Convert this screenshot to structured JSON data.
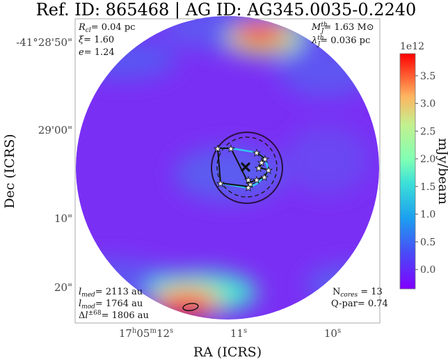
{
  "title": "Ref. ID: 865468 | AG ID: AG345.0035-0.2240",
  "chart_data": {
    "type": "heatmap",
    "title": "Ref. ID: 865468 | AG ID: AG345.0035-0.2240",
    "xlabel": "RA (ICRS)",
    "ylabel": "Dec (ICRS)",
    "x_ticks": [
      "17h05m12s",
      "11s",
      "10s"
    ],
    "y_ticks": [
      "-41°28'50\"",
      "29'00\"",
      "10\"",
      "20\""
    ],
    "annotations_top_left": [
      "R_cl= 0.04 pc",
      "ξ= 1.60",
      "e= 1.24"
    ],
    "annotations_top_right": [
      "M_J^th= 1.63 M⊙",
      "λ_J^th= 0.036 pc"
    ],
    "annotations_bottom_left": [
      "l_med= 2113 au",
      "l_mod= 1764 au",
      "Δl^±68= 1806 au"
    ],
    "annotations_bottom_right": [
      "N_cores = 13",
      "Q-par= 0.74"
    ],
    "colorbar": {
      "label": "mJy/beam",
      "scale_label": "1e12",
      "ticks": [
        0.0,
        0.5,
        1.0,
        1.5,
        2.0,
        2.5,
        3.0,
        3.5
      ],
      "range": [
        -0.35,
        3.9
      ],
      "colormap": "rainbow"
    },
    "cores_count": 13,
    "cores": [
      {
        "ra_sec": 11.14,
        "dec_arcsec": 3.0
      },
      {
        "ra_sec": 11.01,
        "dec_arcsec": 2.6
      },
      {
        "ra_sec": 10.8,
        "dec_arcsec": 3.8
      },
      {
        "ra_sec": 10.77,
        "dec_arcsec": 4.4
      },
      {
        "ra_sec": 10.8,
        "dec_arcsec": 5.2
      },
      {
        "ra_sec": 10.84,
        "dec_arcsec": 5.8
      },
      {
        "ra_sec": 10.74,
        "dec_arcsec": 5.6
      },
      {
        "ra_sec": 10.73,
        "dec_arcsec": 6.6
      },
      {
        "ra_sec": 10.84,
        "dec_arcsec": 6.9
      },
      {
        "ra_sec": 10.89,
        "dec_arcsec": 7.6
      },
      {
        "ra_sec": 10.92,
        "dec_arcsec": 8.0
      },
      {
        "ra_sec": 10.93,
        "dec_arcsec": 8.4
      },
      {
        "ra_sec": 11.12,
        "dec_arcsec": 7.3
      }
    ],
    "center": {
      "ra_sec": 10.87,
      "dec_arcsec": 5.2
    }
  }
}
